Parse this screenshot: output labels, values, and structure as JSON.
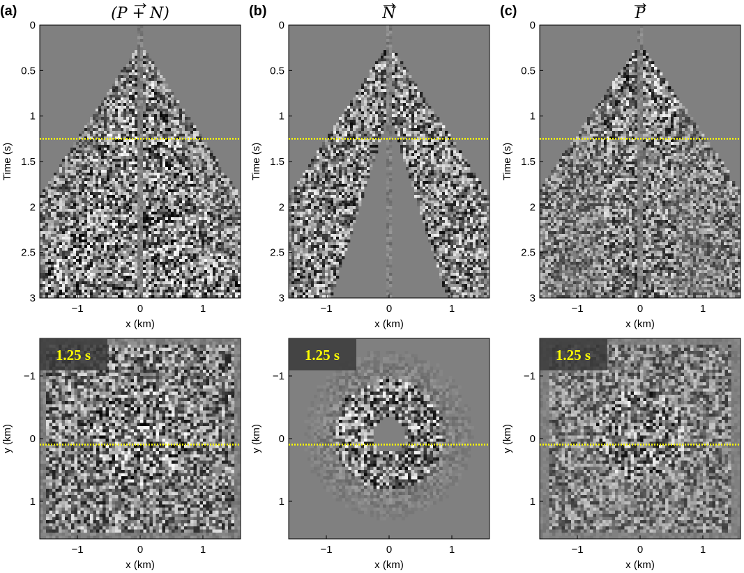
{
  "panels": [
    {
      "letter": "(a)",
      "title": "(P + N)",
      "variant": "combined",
      "gather": {
        "ylabel": "Time (s)",
        "xlabel": "x (km)",
        "yticks": [
          "0",
          "0.5",
          "1",
          "1.5",
          "2",
          "2.5",
          "3"
        ],
        "xticks": [
          "−1",
          "0",
          "1"
        ]
      },
      "slice": {
        "ylabel": "y (km)",
        "xlabel": "x (km)",
        "badge": "1.25 s",
        "yticks": [
          "−1",
          "0",
          "1"
        ],
        "xticks": [
          "−1",
          "0",
          "1"
        ]
      }
    },
    {
      "letter": "(b)",
      "title": "N",
      "variant": "noise",
      "gather": {
        "ylabel": "Time (s)",
        "xlabel": "x (km)",
        "yticks": [
          "0",
          "0.5",
          "1",
          "1.5",
          "2",
          "2.5",
          "3"
        ],
        "xticks": [
          "−1",
          "0",
          "1"
        ]
      },
      "slice": {
        "ylabel": "y (km)",
        "xlabel": "x (km)",
        "badge": "1.25 s",
        "yticks": [
          "−1",
          "0",
          "1"
        ],
        "xticks": [
          "−1",
          "0",
          "1"
        ]
      }
    },
    {
      "letter": "(c)",
      "title": "P",
      "variant": "signal",
      "gather": {
        "ylabel": "Time (s)",
        "xlabel": "x (km)",
        "yticks": [
          "0",
          "0.5",
          "1",
          "1.5",
          "2",
          "2.5",
          "3"
        ],
        "xticks": [
          "−1",
          "0",
          "1"
        ]
      },
      "slice": {
        "ylabel": "y (km)",
        "xlabel": "x (km)",
        "badge": "1.25 s",
        "yticks": [
          "−1",
          "0",
          "1"
        ],
        "xticks": [
          "−1",
          "0",
          "1"
        ]
      }
    }
  ],
  "colors": {
    "background": "#808080",
    "marker_line": "#ffff00",
    "badge_fill": "#3a3a3a"
  }
}
